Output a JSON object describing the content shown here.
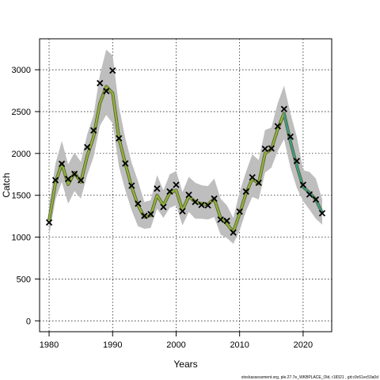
{
  "chart_data": {
    "type": "line",
    "xlabel": "Years",
    "ylabel": "Catch",
    "xlim": [
      1978.5,
      2024.5
    ],
    "ylim": [
      -130,
      3370
    ],
    "xticks": [
      1980,
      1990,
      2000,
      2010,
      2020
    ],
    "yticks": [
      0,
      500,
      1000,
      1500,
      2000,
      2500,
      3000
    ],
    "grid": true,
    "band_color": "#bebebe",
    "line_colors": {
      "fit_main": "#8db33e",
      "fit_outline": "#5a5a2a",
      "fit_recent": "#3a9a8c",
      "observed_marker": "#000000"
    },
    "observed": {
      "x": [
        1980,
        1981,
        1982,
        1983,
        1984,
        1985,
        1986,
        1987,
        1988,
        1989,
        1990,
        1991,
        1992,
        1993,
        1994,
        1995,
        1996,
        1997,
        1998,
        1999,
        2000,
        2001,
        2002,
        2003,
        2004,
        2005,
        2006,
        2007,
        2008,
        2009,
        2010,
        2011,
        2012,
        2013,
        2014,
        2015,
        2016,
        2017,
        2018,
        2019,
        2020,
        2021,
        2022,
        2023
      ],
      "y": [
        1175,
        1680,
        1875,
        1695,
        1755,
        1680,
        2075,
        2275,
        2840,
        2745,
        2990,
        2180,
        1880,
        1615,
        1400,
        1255,
        1275,
        1580,
        1360,
        1545,
        1625,
        1310,
        1505,
        1420,
        1385,
        1380,
        1460,
        1210,
        1195,
        1055,
        1305,
        1545,
        1715,
        1650,
        2055,
        2060,
        2325,
        2530,
        2200,
        1910,
        1625,
        1510,
        1450,
        1285
      ]
    },
    "fitted": {
      "x": [
        1980,
        1981,
        1982,
        1983,
        1984,
        1985,
        1986,
        1987,
        1988,
        1989,
        1990,
        1991,
        1992,
        1993,
        1994,
        1995,
        1996,
        1997,
        1998,
        1999,
        2000,
        2001,
        2002,
        2003,
        2004,
        2005,
        2006,
        2007,
        2008,
        2009,
        2010,
        2011,
        2012,
        2013,
        2014,
        2015,
        2016,
        2017,
        2018,
        2019,
        2020,
        2021,
        2022,
        2023
      ],
      "y": [
        1200,
        1650,
        1880,
        1630,
        1770,
        1660,
        1970,
        2200,
        2600,
        2800,
        2720,
        2180,
        1880,
        1600,
        1380,
        1240,
        1260,
        1500,
        1380,
        1530,
        1560,
        1320,
        1490,
        1420,
        1400,
        1390,
        1460,
        1230,
        1160,
        1060,
        1280,
        1520,
        1700,
        1640,
        2000,
        2050,
        2290,
        2480,
        2140,
        1850,
        1600,
        1530,
        1450,
        1290
      ]
    },
    "band": {
      "lower": [
        1020,
        1450,
        1660,
        1400,
        1550,
        1460,
        1740,
        1960,
        2330,
        2460,
        2360,
        1840,
        1560,
        1320,
        1130,
        1100,
        1110,
        1340,
        1230,
        1350,
        1380,
        1140,
        1300,
        1220,
        1220,
        1210,
        1240,
        1030,
        990,
        920,
        1080,
        1310,
        1480,
        1450,
        1770,
        1830,
        2030,
        2170,
        1830,
        1590,
        1430,
        1330,
        1220,
        1150
      ],
      "upper": [
        1380,
        1880,
        2150,
        1870,
        2010,
        1900,
        2230,
        2460,
        2940,
        3240,
        3170,
        2560,
        2180,
        1890,
        1670,
        1420,
        1440,
        1740,
        1560,
        1750,
        1790,
        1540,
        1720,
        1650,
        1620,
        1610,
        1700,
        1460,
        1380,
        1230,
        1540,
        1780,
        1990,
        1920,
        2280,
        2310,
        2600,
        2810,
        2480,
        2200,
        1800,
        1780,
        1700,
        1450
      ]
    },
    "recent_from": 2017
  },
  "footer_text": "stockassessment.org, ple.27.7e_WKBPLACE_Old, r18321 , git:c9c61ec53a0d"
}
